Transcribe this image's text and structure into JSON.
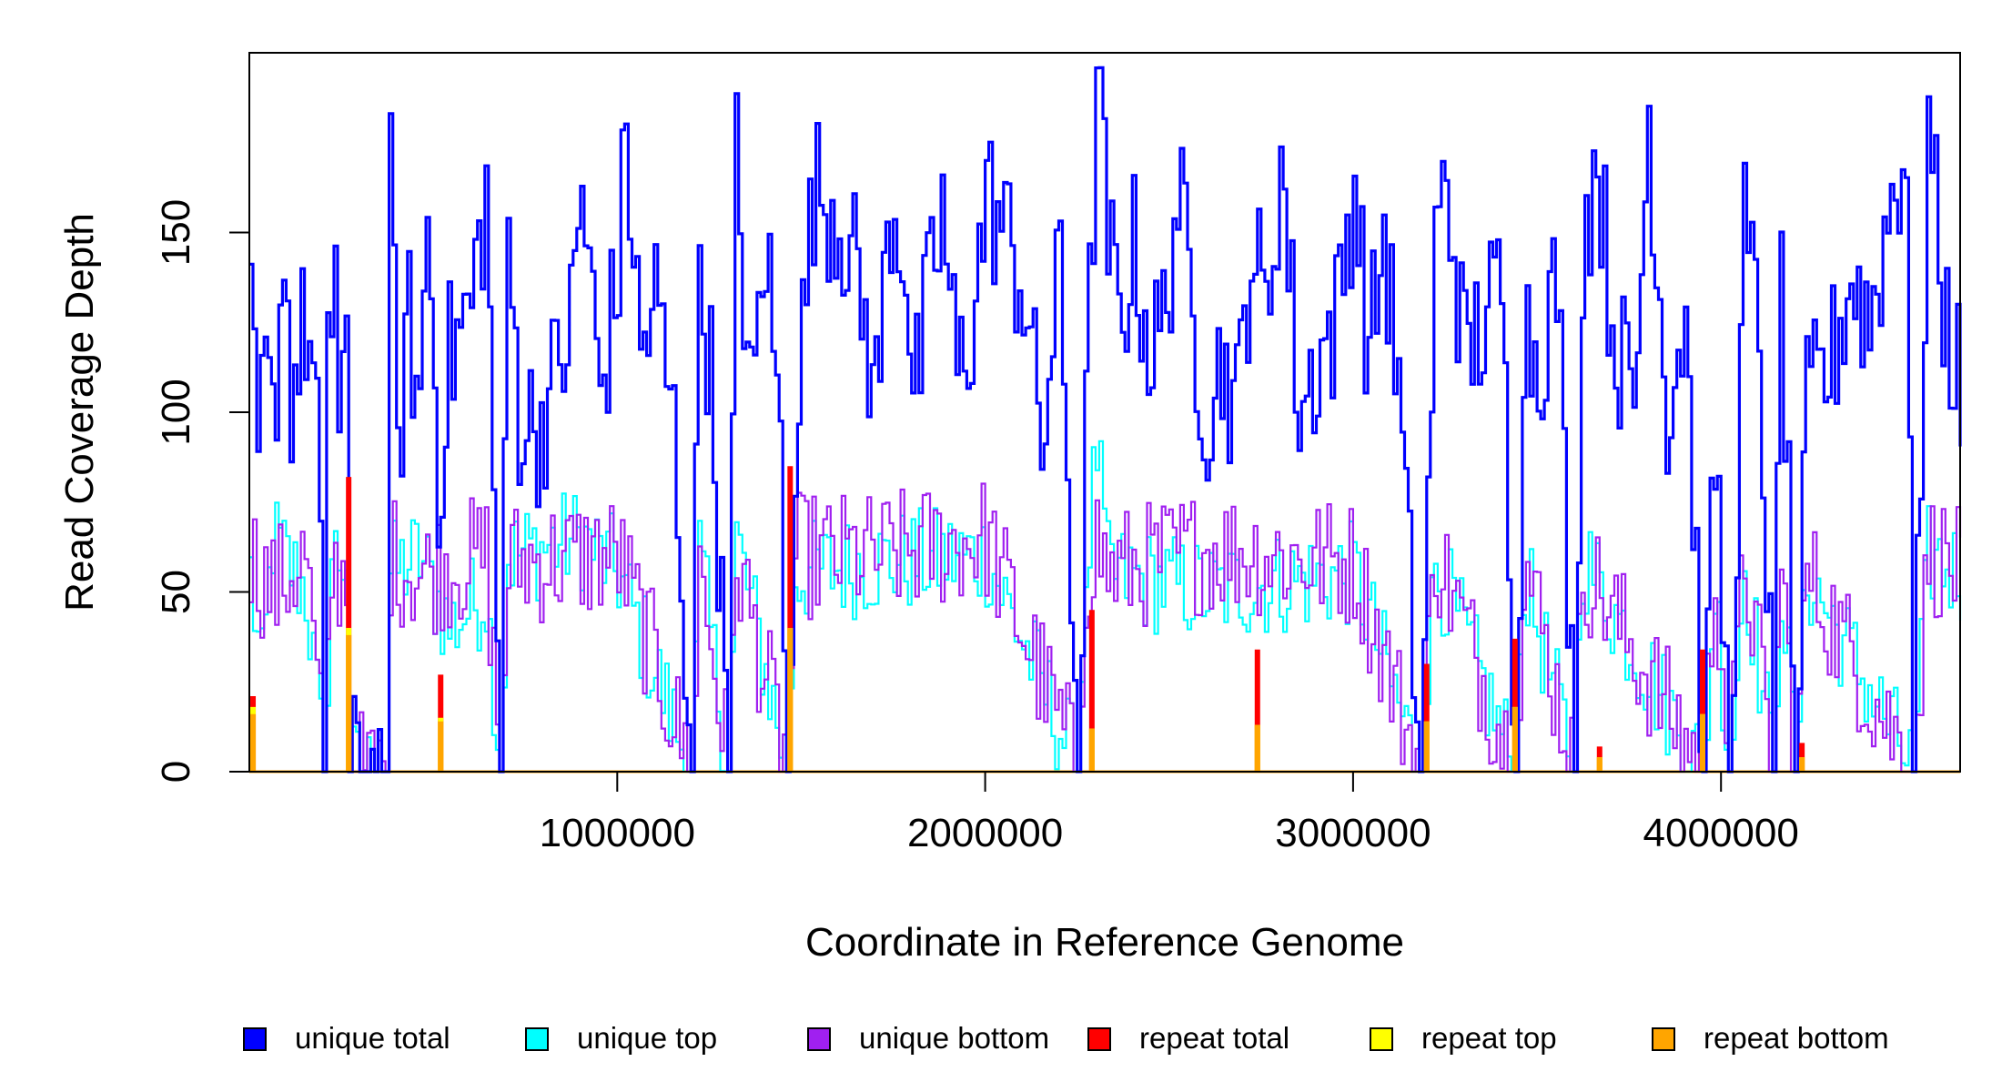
{
  "chart_data": {
    "type": "line",
    "title": "",
    "xlabel": "Coordinate in Reference Genome",
    "ylabel": "Read Coverage Depth",
    "xlim": [
      0,
      4650000
    ],
    "ylim": [
      0,
      200
    ],
    "x_ticks": [
      1000000,
      2000000,
      3000000,
      4000000
    ],
    "x_tick_labels": [
      "1000000",
      "2000000",
      "3000000",
      "4000000"
    ],
    "y_ticks": [
      0,
      50,
      100,
      150
    ],
    "y_tick_labels": [
      "0",
      "50",
      "100",
      "150"
    ],
    "grid": false,
    "legend_position": "bottom",
    "colors": {
      "unique_total": "#0000ff",
      "unique_top": "#00ffff",
      "unique_bottom": "#a020f0",
      "repeat_total": "#ff0000",
      "repeat_top": "#ffff00",
      "repeat_bottom": "#ffa500"
    },
    "legend": [
      {
        "key": "unique_total",
        "label": "unique total"
      },
      {
        "key": "unique_top",
        "label": "unique top"
      },
      {
        "key": "unique_bottom",
        "label": "unique bottom"
      },
      {
        "key": "repeat_total",
        "label": "repeat total"
      },
      {
        "key": "repeat_top",
        "label": "repeat top"
      },
      {
        "key": "repeat_bottom",
        "label": "repeat bottom"
      }
    ],
    "bin_size": 10000,
    "unique_total_keypoints": [
      [
        0,
        120
      ],
      [
        20000,
        85
      ],
      [
        40000,
        110
      ],
      [
        60000,
        95
      ],
      [
        90000,
        147
      ],
      [
        110000,
        105
      ],
      [
        150000,
        125
      ],
      [
        180000,
        100
      ],
      [
        200000,
        0
      ],
      [
        210000,
        110
      ],
      [
        230000,
        148
      ],
      [
        240000,
        100
      ],
      [
        260000,
        123
      ],
      [
        270000,
        0
      ],
      [
        370000,
        0
      ],
      [
        380000,
        162
      ],
      [
        400000,
        90
      ],
      [
        430000,
        125
      ],
      [
        460000,
        100
      ],
      [
        480000,
        160
      ],
      [
        510000,
        80
      ],
      [
        540000,
        115
      ],
      [
        600000,
        130
      ],
      [
        640000,
        162
      ],
      [
        680000,
        0
      ],
      [
        700000,
        148
      ],
      [
        730000,
        100
      ],
      [
        780000,
        95
      ],
      [
        830000,
        110
      ],
      [
        870000,
        125
      ],
      [
        900000,
        162
      ],
      [
        950000,
        105
      ],
      [
        1000000,
        140
      ],
      [
        1020000,
        177
      ],
      [
        1060000,
        115
      ],
      [
        1100000,
        132
      ],
      [
        1150000,
        95
      ],
      [
        1200000,
        0
      ],
      [
        1220000,
        146
      ],
      [
        1250000,
        110
      ],
      [
        1300000,
        0
      ],
      [
        1320000,
        170
      ],
      [
        1360000,
        100
      ],
      [
        1400000,
        148
      ],
      [
        1440000,
        90
      ],
      [
        1460000,
        0
      ],
      [
        1480000,
        95
      ],
      [
        1530000,
        162
      ],
      [
        1580000,
        158
      ],
      [
        1620000,
        150
      ],
      [
        1660000,
        130
      ],
      [
        1700000,
        105
      ],
      [
        1740000,
        158
      ],
      [
        1780000,
        145
      ],
      [
        1800000,
        100
      ],
      [
        1840000,
        130
      ],
      [
        1880000,
        155
      ],
      [
        1920000,
        110
      ],
      [
        1960000,
        125
      ],
      [
        2000000,
        160
      ],
      [
        2050000,
        150
      ],
      [
        2100000,
        135
      ],
      [
        2150000,
        90
      ],
      [
        2200000,
        140
      ],
      [
        2250000,
        0
      ],
      [
        2270000,
        95
      ],
      [
        2300000,
        193
      ],
      [
        2330000,
        148
      ],
      [
        2360000,
        125
      ],
      [
        2400000,
        145
      ],
      [
        2450000,
        115
      ],
      [
        2480000,
        125
      ],
      [
        2520000,
        162
      ],
      [
        2560000,
        125
      ],
      [
        2600000,
        100
      ],
      [
        2640000,
        115
      ],
      [
        2680000,
        100
      ],
      [
        2720000,
        148
      ],
      [
        2760000,
        125
      ],
      [
        2800000,
        172
      ],
      [
        2850000,
        100
      ],
      [
        2900000,
        115
      ],
      [
        2950000,
        125
      ],
      [
        3000000,
        165
      ],
      [
        3040000,
        115
      ],
      [
        3080000,
        150
      ],
      [
        3120000,
        105
      ],
      [
        3180000,
        0
      ],
      [
        3220000,
        145
      ],
      [
        3250000,
        165
      ],
      [
        3300000,
        115
      ],
      [
        3350000,
        125
      ],
      [
        3400000,
        135
      ],
      [
        3440000,
        0
      ],
      [
        3460000,
        125
      ],
      [
        3500000,
        115
      ],
      [
        3550000,
        138
      ],
      [
        3600000,
        0
      ],
      [
        3620000,
        148
      ],
      [
        3660000,
        172
      ],
      [
        3700000,
        125
      ],
      [
        3760000,
        100
      ],
      [
        3800000,
        182
      ],
      [
        3850000,
        100
      ],
      [
        3900000,
        130
      ],
      [
        3950000,
        0
      ],
      [
        3980000,
        90
      ],
      [
        4020000,
        0
      ],
      [
        4060000,
        150
      ],
      [
        4100000,
        120
      ],
      [
        4140000,
        0
      ],
      [
        4160000,
        140
      ],
      [
        4200000,
        0
      ],
      [
        4230000,
        100
      ],
      [
        4300000,
        115
      ],
      [
        4350000,
        138
      ],
      [
        4400000,
        125
      ],
      [
        4460000,
        160
      ],
      [
        4500000,
        175
      ],
      [
        4520000,
        0
      ],
      [
        4560000,
        180
      ],
      [
        4600000,
        130
      ],
      [
        4650000,
        105
      ]
    ],
    "unique_top_keypoints": [
      [
        0,
        55
      ],
      [
        30000,
        25
      ],
      [
        60000,
        65
      ],
      [
        150000,
        50
      ],
      [
        200000,
        0
      ],
      [
        220000,
        60
      ],
      [
        260000,
        60
      ],
      [
        270000,
        0
      ],
      [
        370000,
        0
      ],
      [
        380000,
        55
      ],
      [
        460000,
        60
      ],
      [
        540000,
        40
      ],
      [
        640000,
        50
      ],
      [
        680000,
        0
      ],
      [
        700000,
        60
      ],
      [
        900000,
        65
      ],
      [
        1000000,
        55
      ],
      [
        1200000,
        0
      ],
      [
        1220000,
        60
      ],
      [
        1300000,
        0
      ],
      [
        1320000,
        65
      ],
      [
        1460000,
        0
      ],
      [
        1480000,
        55
      ],
      [
        1700000,
        58
      ],
      [
        2000000,
        60
      ],
      [
        2250000,
        0
      ],
      [
        2270000,
        55
      ],
      [
        2300000,
        90
      ],
      [
        2330000,
        55
      ],
      [
        2600000,
        50
      ],
      [
        3000000,
        55
      ],
      [
        3180000,
        0
      ],
      [
        3220000,
        58
      ],
      [
        3440000,
        0
      ],
      [
        3460000,
        55
      ],
      [
        3600000,
        0
      ],
      [
        3620000,
        60
      ],
      [
        3950000,
        0
      ],
      [
        3980000,
        52
      ],
      [
        4020000,
        0
      ],
      [
        4060000,
        58
      ],
      [
        4140000,
        0
      ],
      [
        4160000,
        55
      ],
      [
        4200000,
        0
      ],
      [
        4230000,
        55
      ],
      [
        4520000,
        0
      ],
      [
        4560000,
        60
      ],
      [
        4650000,
        55
      ]
    ],
    "unique_bottom_keypoints": [
      [
        0,
        60
      ],
      [
        60000,
        50
      ],
      [
        150000,
        60
      ],
      [
        200000,
        0
      ],
      [
        220000,
        55
      ],
      [
        260000,
        55
      ],
      [
        270000,
        0
      ],
      [
        370000,
        0
      ],
      [
        380000,
        60
      ],
      [
        460000,
        55
      ],
      [
        640000,
        60
      ],
      [
        680000,
        0
      ],
      [
        700000,
        58
      ],
      [
        1000000,
        60
      ],
      [
        1200000,
        0
      ],
      [
        1220000,
        58
      ],
      [
        1300000,
        0
      ],
      [
        1320000,
        60
      ],
      [
        1460000,
        0
      ],
      [
        1480000,
        60
      ],
      [
        1700000,
        60
      ],
      [
        2000000,
        65
      ],
      [
        2250000,
        0
      ],
      [
        2270000,
        55
      ],
      [
        2300000,
        65
      ],
      [
        2330000,
        55
      ],
      [
        2600000,
        62
      ],
      [
        3000000,
        58
      ],
      [
        3180000,
        0
      ],
      [
        3220000,
        62
      ],
      [
        3440000,
        0
      ],
      [
        3460000,
        60
      ],
      [
        3600000,
        0
      ],
      [
        3620000,
        58
      ],
      [
        3950000,
        0
      ],
      [
        3980000,
        60
      ],
      [
        4020000,
        0
      ],
      [
        4060000,
        60
      ],
      [
        4140000,
        0
      ],
      [
        4160000,
        58
      ],
      [
        4200000,
        0
      ],
      [
        4230000,
        55
      ],
      [
        4520000,
        0
      ],
      [
        4560000,
        62
      ],
      [
        4650000,
        55
      ]
    ],
    "repeat_spikes": [
      {
        "x": 10000,
        "total": 21,
        "top": 18,
        "bottom": 16
      },
      {
        "x": 270000,
        "total": 82,
        "top": 40,
        "bottom": 38
      },
      {
        "x": 520000,
        "total": 27,
        "top": 15,
        "bottom": 14
      },
      {
        "x": 1470000,
        "total": 85,
        "top": 40,
        "bottom": 40
      },
      {
        "x": 2290000,
        "total": 45,
        "top": 12,
        "bottom": 12
      },
      {
        "x": 2740000,
        "total": 34,
        "top": 13,
        "bottom": 13
      },
      {
        "x": 3200000,
        "total": 30,
        "top": 14,
        "bottom": 14
      },
      {
        "x": 3440000,
        "total": 37,
        "top": 18,
        "bottom": 18
      },
      {
        "x": 3670000,
        "total": 7,
        "top": 4,
        "bottom": 4
      },
      {
        "x": 3950000,
        "total": 34,
        "top": 16,
        "bottom": 16
      },
      {
        "x": 4220000,
        "total": 8,
        "top": 4,
        "bottom": 4
      }
    ]
  }
}
